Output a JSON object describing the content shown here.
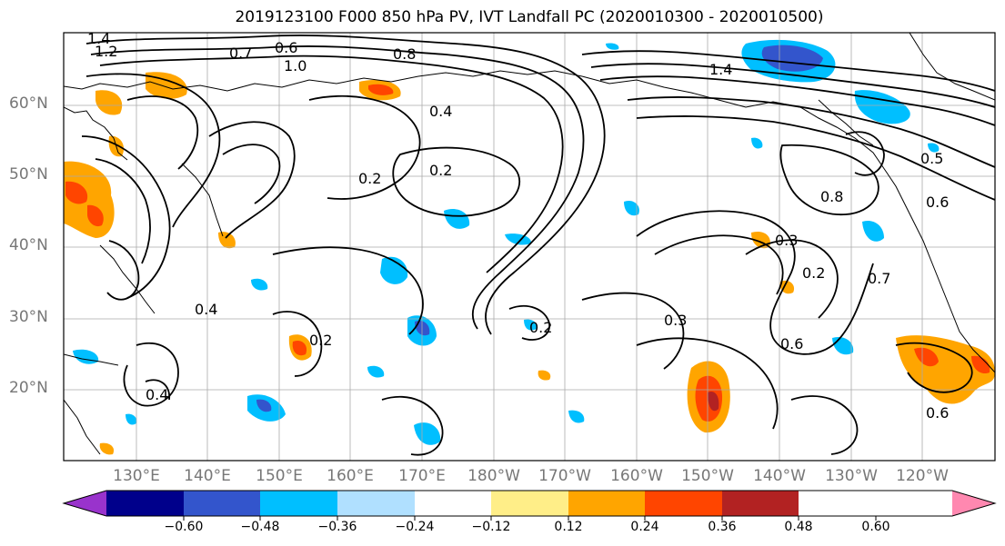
{
  "title": "2019123100 F000 850 hPa PV, IVT Landfall PC (2020010300 - 2020010500)",
  "lat_labels": [
    "60°N",
    "50°N",
    "40°N",
    "30°N",
    "20°N"
  ],
  "lon_labels": [
    "130°E",
    "140°E",
    "150°E",
    "160°E",
    "170°E",
    "180°W",
    "170°W",
    "160°W",
    "150°W",
    "140°W",
    "130°W",
    "120°W"
  ],
  "contour_labels": [
    "1.4",
    "1.2",
    "0.7",
    "0.6",
    "0.8",
    "1.0",
    "1.4",
    "0.4",
    "0.2",
    "0.2",
    "0.8",
    "0.6",
    "0.3",
    "0.2",
    "0.3",
    "0.6",
    "0.2",
    "0.4",
    "0.2",
    "0.4",
    "0.6",
    "0.5",
    "0.7"
  ],
  "colorbar": {
    "ticks": [
      "−0.60",
      "−0.48",
      "−0.36",
      "−0.24",
      "−0.12",
      "0.12",
      "0.24",
      "0.36",
      "0.48",
      "0.60"
    ],
    "colors": [
      "#9933cc",
      "#00008b",
      "#3355cc",
      "#00bfff",
      "#b0e0ff",
      "#ffffff",
      "#ffee88",
      "#ffa500",
      "#ff4500",
      "#b22222",
      "#ff88b0"
    ]
  }
}
